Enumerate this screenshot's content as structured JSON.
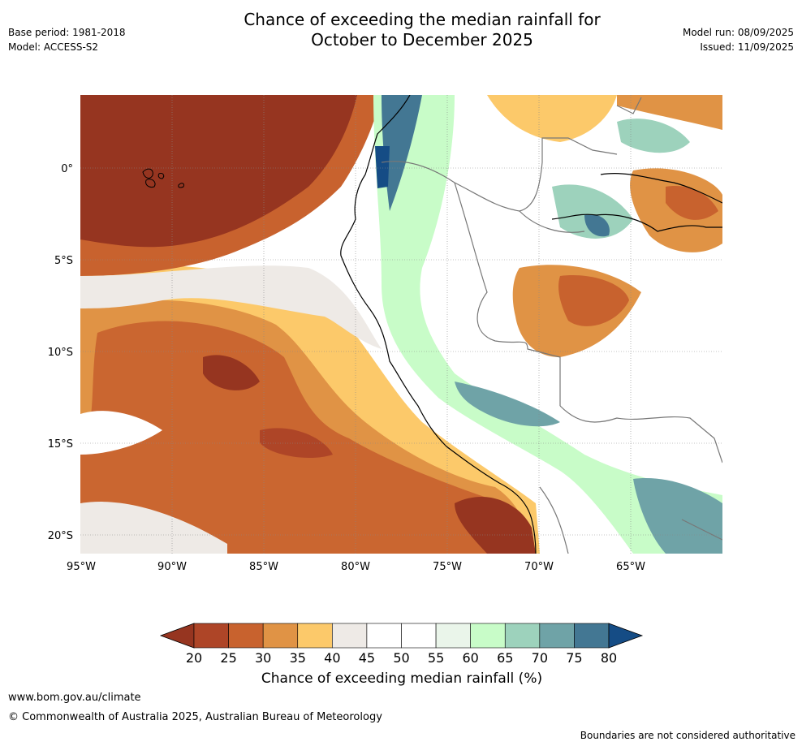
{
  "header": {
    "title_line1": "Chance of exceeding the median rainfall for",
    "title_line2": "October to December 2025",
    "base_period": "Base period: 1981-2018",
    "model": "Model: ACCESS-S2",
    "model_run": "Model run: 08/09/2025",
    "issued": "Issued: 11/09/2025"
  },
  "map": {
    "lat_labels": [
      "0°",
      "5°S",
      "10°S",
      "15°S",
      "20°S"
    ],
    "lon_labels": [
      "95°W",
      "90°W",
      "85°W",
      "80°W",
      "75°W",
      "70°W",
      "65°W"
    ]
  },
  "colorbar": {
    "ticks": [
      "20",
      "25",
      "30",
      "35",
      "40",
      "45",
      "50",
      "55",
      "60",
      "65",
      "70",
      "75",
      "80"
    ],
    "colors": [
      "#963520",
      "#ae4527",
      "#c8622e",
      "#e09345",
      "#fcc96a",
      "#eeeae6",
      "#ffffff",
      "#ffffff",
      "#eaf5ea",
      "#c8fcc8",
      "#9dd2bc",
      "#6fa3a7",
      "#437793",
      "#154c85"
    ],
    "label": "Chance of exceeding median rainfall (%)"
  },
  "footer": {
    "url": "www.bom.gov.au/climate",
    "copyright": "© Commonwealth of Australia 2025, Australian Bureau of Meteorology",
    "note": "Boundaries are not considered authoritative"
  }
}
